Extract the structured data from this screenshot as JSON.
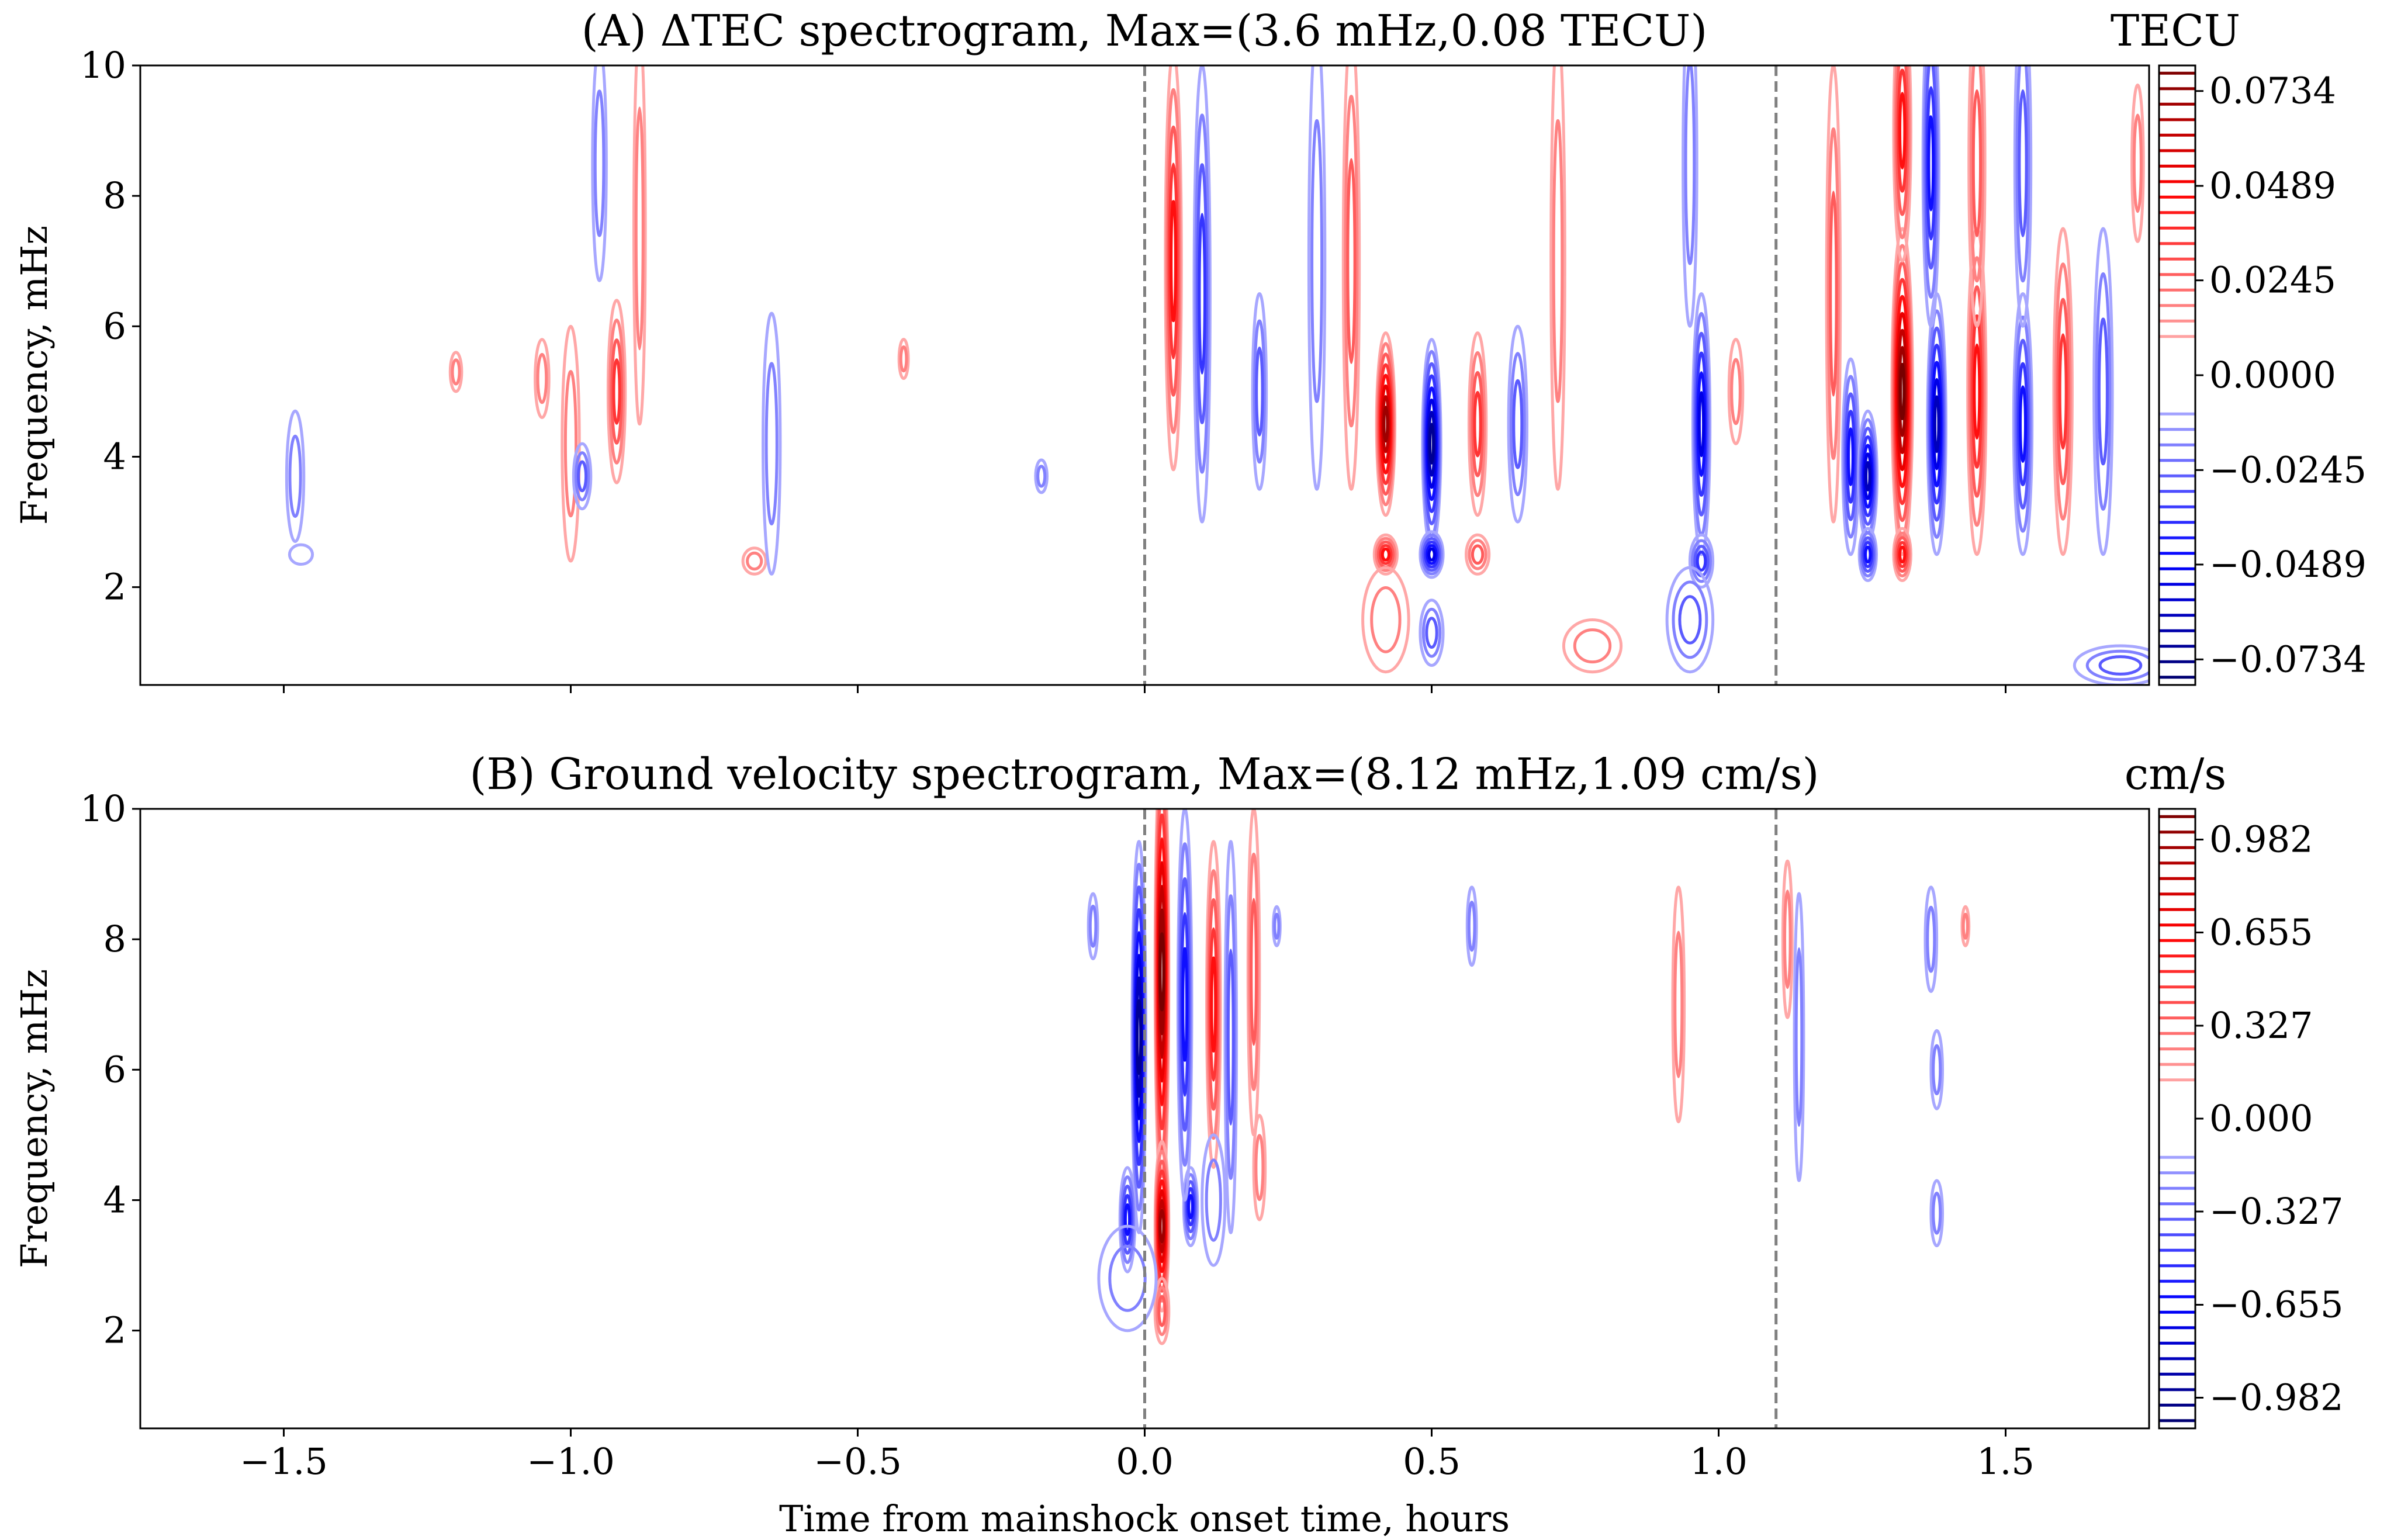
{
  "chart_data": [
    {
      "type": "contour",
      "panel": "A",
      "title": "(A) ΔTEC spectrogram, Max=(3.6 mHz,0.08 TECU)",
      "xlabel": "",
      "ylabel": "Frequency, mHz",
      "xlim": [
        -1.75,
        1.75
      ],
      "ylim": [
        0.5,
        10
      ],
      "xticks": [
        -1.5,
        -1.0,
        -0.5,
        0.0,
        0.5,
        1.0,
        1.5
      ],
      "xtick_labels": [
        "",
        "",
        "",
        "",
        "",
        "",
        ""
      ],
      "yticks": [
        2,
        4,
        6,
        8,
        10
      ],
      "ytick_labels": [
        "2",
        "4",
        "6",
        "8",
        "10"
      ],
      "vlines": [
        0.0,
        1.1
      ],
      "colorbar": {
        "unit": "TECU",
        "ticks": [
          0.0734,
          0.0489,
          0.0245,
          0.0,
          -0.0245,
          -0.0489,
          -0.0734
        ],
        "tick_labels": [
          "0.0734",
          "0.0489",
          "0.0245",
          "0.0000",
          "−0.0245",
          "−0.0489",
          "−0.0734"
        ],
        "n_levels": 20,
        "max": 0.08
      },
      "max_point": {
        "freq_mHz": 3.6,
        "value": 0.08
      },
      "blobs": [
        {
          "t": -1.48,
          "f": 3.7,
          "rf": 1.0,
          "ht": 0.015,
          "sign": -1,
          "amp": 0.25
        },
        {
          "t": -1.47,
          "f": 2.5,
          "rf": 0.15,
          "ht": 0.02,
          "sign": -1,
          "amp": 0.15
        },
        {
          "t": -1.2,
          "f": 5.3,
          "rf": 0.3,
          "ht": 0.01,
          "sign": 1,
          "amp": 0.2
        },
        {
          "t": -1.05,
          "f": 5.2,
          "rf": 0.6,
          "ht": 0.012,
          "sign": 1,
          "amp": 0.2
        },
        {
          "t": -1.0,
          "f": 4.2,
          "rf": 1.8,
          "ht": 0.015,
          "sign": 1,
          "amp": 0.2
        },
        {
          "t": -0.98,
          "f": 3.7,
          "rf": 0.5,
          "ht": 0.015,
          "sign": -1,
          "amp": 0.35
        },
        {
          "t": -0.92,
          "f": 5.0,
          "rf": 1.4,
          "ht": 0.015,
          "sign": 1,
          "amp": 0.4
        },
        {
          "t": -0.95,
          "f": 8.5,
          "rf": 1.8,
          "ht": 0.012,
          "sign": -1,
          "amp": 0.18
        },
        {
          "t": -0.88,
          "f": 7.5,
          "rf": 3.0,
          "ht": 0.01,
          "sign": 1,
          "amp": 0.2
        },
        {
          "t": -0.68,
          "f": 2.4,
          "rf": 0.2,
          "ht": 0.02,
          "sign": 1,
          "amp": 0.2
        },
        {
          "t": -0.65,
          "f": 4.2,
          "rf": 2.0,
          "ht": 0.015,
          "sign": -1,
          "amp": 0.18
        },
        {
          "t": -0.42,
          "f": 5.5,
          "rf": 0.3,
          "ht": 0.008,
          "sign": 1,
          "amp": 0.2
        },
        {
          "t": -0.18,
          "f": 3.7,
          "rf": 0.25,
          "ht": 0.01,
          "sign": -1,
          "amp": 0.18
        },
        {
          "t": 0.05,
          "f": 7.0,
          "rf": 3.2,
          "ht": 0.014,
          "sign": 1,
          "amp": 0.5
        },
        {
          "t": 0.1,
          "f": 6.5,
          "rf": 3.5,
          "ht": 0.014,
          "sign": -1,
          "amp": 0.4
        },
        {
          "t": 0.2,
          "f": 5.0,
          "rf": 1.5,
          "ht": 0.012,
          "sign": -1,
          "amp": 0.3
        },
        {
          "t": 0.3,
          "f": 7.0,
          "rf": 3.5,
          "ht": 0.014,
          "sign": -1,
          "amp": 0.25
        },
        {
          "t": 0.36,
          "f": 7.0,
          "rf": 3.5,
          "ht": 0.014,
          "sign": 1,
          "amp": 0.3
        },
        {
          "t": 0.42,
          "f": 4.5,
          "rf": 1.4,
          "ht": 0.016,
          "sign": 1,
          "amp": 0.9
        },
        {
          "t": 0.42,
          "f": 2.5,
          "rf": 0.3,
          "ht": 0.02,
          "sign": 1,
          "amp": 0.5
        },
        {
          "t": 0.42,
          "f": 1.5,
          "rf": 0.8,
          "ht": 0.04,
          "sign": 1,
          "amp": 0.2
        },
        {
          "t": 0.5,
          "f": 4.2,
          "rf": 1.6,
          "ht": 0.016,
          "sign": -1,
          "amp": 0.85
        },
        {
          "t": 0.5,
          "f": 2.5,
          "rf": 0.35,
          "ht": 0.02,
          "sign": -1,
          "amp": 0.7
        },
        {
          "t": 0.5,
          "f": 1.3,
          "rf": 0.5,
          "ht": 0.02,
          "sign": -1,
          "amp": 0.3
        },
        {
          "t": 0.58,
          "f": 4.5,
          "rf": 1.4,
          "ht": 0.015,
          "sign": 1,
          "amp": 0.4
        },
        {
          "t": 0.58,
          "f": 2.5,
          "rf": 0.3,
          "ht": 0.02,
          "sign": 1,
          "amp": 0.3
        },
        {
          "t": 0.65,
          "f": 4.5,
          "rf": 1.5,
          "ht": 0.016,
          "sign": -1,
          "amp": 0.3
        },
        {
          "t": 0.72,
          "f": 7.0,
          "rf": 3.5,
          "ht": 0.012,
          "sign": 1,
          "amp": 0.25
        },
        {
          "t": 0.78,
          "f": 1.1,
          "rf": 0.4,
          "ht": 0.05,
          "sign": 1,
          "amp": 0.2
        },
        {
          "t": 0.97,
          "f": 4.5,
          "rf": 2.0,
          "ht": 0.015,
          "sign": -1,
          "amp": 0.7
        },
        {
          "t": 0.97,
          "f": 2.4,
          "rf": 0.4,
          "ht": 0.02,
          "sign": -1,
          "amp": 0.4
        },
        {
          "t": 0.95,
          "f": 1.5,
          "rf": 0.8,
          "ht": 0.04,
          "sign": -1,
          "amp": 0.3
        },
        {
          "t": 0.95,
          "f": 8.5,
          "rf": 2.5,
          "ht": 0.012,
          "sign": -1,
          "amp": 0.25
        },
        {
          "t": 1.03,
          "f": 5.0,
          "rf": 0.8,
          "ht": 0.012,
          "sign": 1,
          "amp": 0.2
        },
        {
          "t": 1.2,
          "f": 6.5,
          "rf": 3.5,
          "ht": 0.012,
          "sign": 1,
          "amp": 0.35
        },
        {
          "t": 1.23,
          "f": 4.0,
          "rf": 1.5,
          "ht": 0.014,
          "sign": -1,
          "amp": 0.5
        },
        {
          "t": 1.26,
          "f": 3.7,
          "rf": 1.0,
          "ht": 0.016,
          "sign": -1,
          "amp": 0.8
        },
        {
          "t": 1.26,
          "f": 2.5,
          "rf": 0.4,
          "ht": 0.015,
          "sign": -1,
          "amp": 0.5
        },
        {
          "t": 1.32,
          "f": 5.0,
          "rf": 2.5,
          "ht": 0.018,
          "sign": 1,
          "amp": 1.0
        },
        {
          "t": 1.32,
          "f": 9.0,
          "rf": 2.0,
          "ht": 0.015,
          "sign": 1,
          "amp": 0.6
        },
        {
          "t": 1.32,
          "f": 2.5,
          "rf": 0.4,
          "ht": 0.015,
          "sign": 1,
          "amp": 0.6
        },
        {
          "t": 1.38,
          "f": 4.5,
          "rf": 2.0,
          "ht": 0.016,
          "sign": -1,
          "amp": 0.75
        },
        {
          "t": 1.37,
          "f": 8.5,
          "rf": 2.5,
          "ht": 0.014,
          "sign": -1,
          "amp": 0.5
        },
        {
          "t": 1.45,
          "f": 5.0,
          "rf": 2.5,
          "ht": 0.016,
          "sign": 1,
          "amp": 0.5
        },
        {
          "t": 1.45,
          "f": 8.5,
          "rf": 2.5,
          "ht": 0.014,
          "sign": 1,
          "amp": 0.3
        },
        {
          "t": 1.53,
          "f": 4.5,
          "rf": 2.0,
          "ht": 0.016,
          "sign": -1,
          "amp": 0.5
        },
        {
          "t": 1.53,
          "f": 8.5,
          "rf": 2.5,
          "ht": 0.014,
          "sign": -1,
          "amp": 0.3
        },
        {
          "t": 1.6,
          "f": 5.0,
          "rf": 2.5,
          "ht": 0.016,
          "sign": 1,
          "amp": 0.4
        },
        {
          "t": 1.67,
          "f": 5.0,
          "rf": 2.5,
          "ht": 0.016,
          "sign": -1,
          "amp": 0.3
        },
        {
          "t": 1.7,
          "f": 0.8,
          "rf": 0.3,
          "ht": 0.08,
          "sign": -1,
          "amp": 0.3
        },
        {
          "t": 1.73,
          "f": 8.5,
          "rf": 1.2,
          "ht": 0.01,
          "sign": 1,
          "amp": 0.2
        }
      ]
    },
    {
      "type": "contour",
      "panel": "B",
      "title": "(B) Ground velocity spectrogram, Max=(8.12 mHz,1.09 cm/s)",
      "xlabel": "Time from mainshock onset time, hours",
      "ylabel": "Frequency, mHz",
      "xlim": [
        -1.75,
        1.75
      ],
      "ylim": [
        0.5,
        10
      ],
      "xticks": [
        -1.5,
        -1.0,
        -0.5,
        0.0,
        0.5,
        1.0,
        1.5
      ],
      "xtick_labels": [
        "−1.5",
        "−1.0",
        "−0.5",
        "0.0",
        "0.5",
        "1.0",
        "1.5"
      ],
      "yticks": [
        2,
        4,
        6,
        8,
        10
      ],
      "ytick_labels": [
        "2",
        "4",
        "6",
        "8",
        "10"
      ],
      "vlines": [
        0.0,
        1.1
      ],
      "colorbar": {
        "unit": "cm/s",
        "ticks": [
          0.982,
          0.655,
          0.327,
          0.0,
          -0.327,
          -0.655,
          -0.982
        ],
        "tick_labels": [
          "0.982",
          "0.655",
          "0.327",
          "0.000",
          "−0.327",
          "−0.655",
          "−0.982"
        ],
        "n_levels": 20,
        "max": 1.09
      },
      "max_point": {
        "freq_mHz": 8.12,
        "value": 1.09
      },
      "blobs": [
        {
          "t": 0.03,
          "f": 7.5,
          "rf": 3.5,
          "ht": 0.012,
          "sign": 1,
          "amp": 1.0
        },
        {
          "t": 0.03,
          "f": 3.6,
          "rf": 1.3,
          "ht": 0.012,
          "sign": 1,
          "amp": 0.85
        },
        {
          "t": 0.03,
          "f": 2.3,
          "rf": 0.5,
          "ht": 0.012,
          "sign": 1,
          "amp": 0.3
        },
        {
          "t": -0.01,
          "f": 6.5,
          "rf": 3.0,
          "ht": 0.012,
          "sign": -1,
          "amp": 0.85
        },
        {
          "t": -0.03,
          "f": 3.7,
          "rf": 0.8,
          "ht": 0.013,
          "sign": -1,
          "amp": 0.6
        },
        {
          "t": -0.03,
          "f": 2.8,
          "rf": 0.8,
          "ht": 0.05,
          "sign": -1,
          "amp": 0.2
        },
        {
          "t": 0.08,
          "f": 3.9,
          "rf": 0.6,
          "ht": 0.012,
          "sign": -1,
          "amp": 0.55
        },
        {
          "t": 0.07,
          "f": 7.0,
          "rf": 3.0,
          "ht": 0.012,
          "sign": -1,
          "amp": 0.5
        },
        {
          "t": 0.12,
          "f": 7.0,
          "rf": 2.5,
          "ht": 0.012,
          "sign": 1,
          "amp": 0.55
        },
        {
          "t": 0.15,
          "f": 6.5,
          "rf": 3.0,
          "ht": 0.01,
          "sign": -1,
          "amp": 0.35
        },
        {
          "t": 0.12,
          "f": 4.0,
          "rf": 1.0,
          "ht": 0.02,
          "sign": -1,
          "amp": 0.25
        },
        {
          "t": 0.19,
          "f": 7.5,
          "rf": 2.5,
          "ht": 0.01,
          "sign": 1,
          "amp": 0.35
        },
        {
          "t": 0.2,
          "f": 4.5,
          "rf": 0.8,
          "ht": 0.01,
          "sign": 1,
          "amp": 0.2
        },
        {
          "t": -0.09,
          "f": 8.2,
          "rf": 0.5,
          "ht": 0.008,
          "sign": -1,
          "amp": 0.2
        },
        {
          "t": 0.23,
          "f": 8.2,
          "rf": 0.3,
          "ht": 0.006,
          "sign": -1,
          "amp": 0.2
        },
        {
          "t": 0.57,
          "f": 8.2,
          "rf": 0.6,
          "ht": 0.008,
          "sign": -1,
          "amp": 0.2
        },
        {
          "t": 0.93,
          "f": 7.0,
          "rf": 1.8,
          "ht": 0.01,
          "sign": 1,
          "amp": 0.2
        },
        {
          "t": 1.12,
          "f": 8.0,
          "rf": 1.2,
          "ht": 0.008,
          "sign": 1,
          "amp": 0.25
        },
        {
          "t": 1.14,
          "f": 6.5,
          "rf": 2.2,
          "ht": 0.008,
          "sign": -1,
          "amp": 0.2
        },
        {
          "t": 1.37,
          "f": 8.0,
          "rf": 0.8,
          "ht": 0.01,
          "sign": -1,
          "amp": 0.2
        },
        {
          "t": 1.38,
          "f": 6.0,
          "rf": 0.6,
          "ht": 0.01,
          "sign": -1,
          "amp": 0.2
        },
        {
          "t": 1.38,
          "f": 3.8,
          "rf": 0.5,
          "ht": 0.01,
          "sign": -1,
          "amp": 0.2
        },
        {
          "t": 1.43,
          "f": 8.2,
          "rf": 0.3,
          "ht": 0.006,
          "sign": 1,
          "amp": 0.2
        }
      ]
    }
  ]
}
